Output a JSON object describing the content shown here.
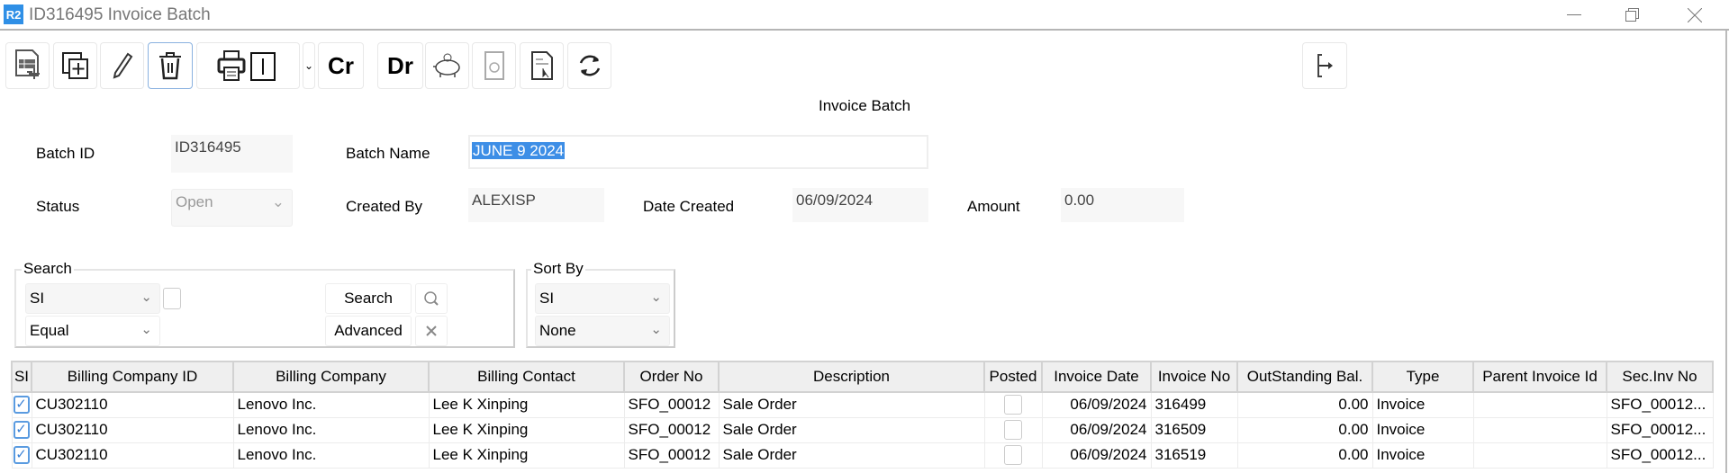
{
  "window": {
    "logo": "R2",
    "title": "ID316495 Invoice Batch",
    "controls": [
      "minimize-icon",
      "restore-icon",
      "close-icon"
    ]
  },
  "toolbar": {
    "buttons": [
      "new-document-icon",
      "copy-add-icon",
      "edit-pencil-icon",
      "trash-icon",
      "print-icon",
      "dropdown-chevron-icon",
      "credit",
      "debit",
      "piggy-bank-icon",
      "disabled-reset-icon",
      "document-select-icon",
      "refresh-icon",
      "exit-icon"
    ],
    "cr_label": "Cr",
    "dr_label": "Dr"
  },
  "form": {
    "heading": "Invoice Batch",
    "batch_id_label": "Batch ID",
    "batch_id": "ID316495",
    "batch_name_label": "Batch Name",
    "batch_name": "JUNE 9 2024",
    "status_label": "Status",
    "status": "Open",
    "created_by_label": "Created By",
    "created_by": "ALEXISP",
    "date_created_label": "Date Created",
    "date_created": "06/09/2024",
    "amount_label": "Amount",
    "amount": "0.00"
  },
  "search": {
    "label": "Search",
    "field": "SI",
    "operator": "Equal",
    "search_button": "Search",
    "advanced_button": "Advanced"
  },
  "sort": {
    "label": "Sort By",
    "field": "SI",
    "order": "None"
  },
  "table": {
    "columns": [
      "SI",
      "Billing Company ID",
      "Billing Company",
      "Billing Contact",
      "Order No",
      "Description",
      "Posted",
      "Invoice Date",
      "Invoice No",
      "OutStanding Bal.",
      "Type",
      "Parent Invoice Id",
      "Sec.Inv No"
    ],
    "rows": [
      {
        "si": true,
        "company_id": "CU302110",
        "company": "Lenovo Inc.",
        "contact": "Lee K Xinping",
        "order_no": "SFO_00012",
        "description": "Sale Order",
        "posted": false,
        "invoice_date": "06/09/2024",
        "invoice_no": "316499",
        "outstanding": "0.00",
        "type": "Invoice",
        "parent_id": "",
        "sec_inv_no": "SFO_00012..."
      },
      {
        "si": true,
        "company_id": "CU302110",
        "company": "Lenovo Inc.",
        "contact": "Lee K Xinping",
        "order_no": "SFO_00012",
        "description": "Sale Order",
        "posted": false,
        "invoice_date": "06/09/2024",
        "invoice_no": "316509",
        "outstanding": "0.00",
        "type": "Invoice",
        "parent_id": "",
        "sec_inv_no": "SFO_00012..."
      },
      {
        "si": true,
        "company_id": "CU302110",
        "company": "Lenovo Inc.",
        "contact": "Lee K Xinping",
        "order_no": "SFO_00012",
        "description": "Sale Order",
        "posted": false,
        "invoice_date": "06/09/2024",
        "invoice_no": "316519",
        "outstanding": "0.00",
        "type": "Invoice",
        "parent_id": "",
        "sec_inv_no": "SFO_00012..."
      }
    ]
  },
  "colors": {
    "accent": "#2f8fe6",
    "selection": "#3d8ee6",
    "header_bg": "#efefef"
  }
}
